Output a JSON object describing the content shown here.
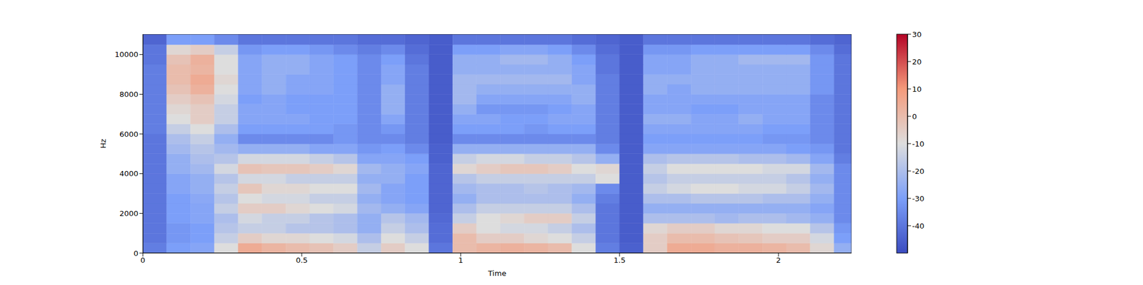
{
  "chart_data": {
    "type": "heatmap",
    "xlabel": "Time",
    "ylabel": "Hz",
    "xlim": [
      0,
      2.23
    ],
    "xticks": [
      0,
      0.5,
      1,
      1.5,
      2
    ],
    "ylim": [
      0,
      11025
    ],
    "yticks": [
      0,
      2000,
      4000,
      6000,
      8000,
      10000
    ],
    "x": [
      0,
      0.075,
      0.15,
      0.225,
      0.3,
      0.375,
      0.45,
      0.525,
      0.6,
      0.675,
      0.75,
      0.825,
      0.9,
      0.975,
      1.05,
      1.125,
      1.2,
      1.275,
      1.35,
      1.425,
      1.5,
      1.575,
      1.65,
      1.725,
      1.8,
      1.875,
      1.95,
      2.025,
      2.1,
      2.175
    ],
    "y": [
      0,
      500,
      1000,
      1500,
      2000,
      2500,
      3000,
      3500,
      4000,
      4500,
      5000,
      5500,
      6000,
      6500,
      7000,
      7500,
      8000,
      8500,
      9000,
      9500,
      10000,
      10500
    ],
    "cells": [
      [
        -38,
        -30,
        -28,
        -10,
        5,
        2,
        0,
        -2,
        -5,
        -15,
        -5,
        -10,
        -40,
        0,
        2,
        3,
        2,
        0,
        -10,
        -38,
        -45,
        -5,
        5,
        5,
        3,
        3,
        2,
        0,
        -8,
        -25
      ],
      [
        -40,
        -32,
        -30,
        -15,
        -5,
        -8,
        -8,
        -10,
        -12,
        -20,
        -10,
        -15,
        -42,
        0,
        -5,
        -5,
        -8,
        -10,
        -15,
        -40,
        -46,
        -5,
        0,
        0,
        -2,
        -3,
        -5,
        -5,
        -12,
        -30
      ],
      [
        -40,
        -32,
        -30,
        -18,
        -15,
        -15,
        -18,
        -18,
        -20,
        -25,
        -15,
        -20,
        -42,
        -5,
        -10,
        -12,
        -12,
        -15,
        -20,
        -40,
        -46,
        -8,
        -5,
        -5,
        -8,
        -8,
        -10,
        -10,
        -18,
        -32
      ],
      [
        -40,
        -30,
        -28,
        -20,
        -12,
        -15,
        -15,
        -18,
        -20,
        -25,
        -18,
        -22,
        -43,
        -15,
        -10,
        -8,
        -5,
        -5,
        -15,
        -40,
        -46,
        -20,
        -20,
        -20,
        -22,
        -20,
        -20,
        -22,
        -25,
        -35
      ],
      [
        -40,
        -30,
        -28,
        -15,
        -5,
        -5,
        -8,
        -10,
        -12,
        -22,
        -25,
        -28,
        -44,
        -20,
        -15,
        -15,
        -15,
        -15,
        -20,
        -40,
        -46,
        -25,
        -25,
        -25,
        -25,
        -25,
        -25,
        -25,
        -28,
        -35
      ],
      [
        -40,
        -30,
        -27,
        -18,
        -10,
        -12,
        -12,
        -15,
        -15,
        -25,
        -28,
        -30,
        -44,
        -25,
        -20,
        -20,
        -20,
        -20,
        -25,
        -38,
        -46,
        -20,
        -20,
        -18,
        -18,
        -18,
        -20,
        -20,
        -25,
        -35
      ],
      [
        -40,
        -28,
        -25,
        -15,
        -3,
        -8,
        -8,
        -10,
        -10,
        -22,
        -28,
        -30,
        -44,
        -22,
        -20,
        -20,
        -18,
        -20,
        -22,
        -35,
        -46,
        -15,
        -12,
        -10,
        -10,
        -12,
        -12,
        -15,
        -22,
        -35
      ],
      [
        -40,
        -28,
        -25,
        -18,
        -12,
        -12,
        -15,
        -15,
        -15,
        -25,
        -25,
        -30,
        -44,
        -18,
        -15,
        -15,
        -15,
        -15,
        -15,
        -10,
        -46,
        -18,
        -15,
        -15,
        -15,
        -15,
        -15,
        -18,
        -25,
        -35
      ],
      [
        -40,
        -25,
        -22,
        -12,
        -2,
        -3,
        -3,
        -5,
        -8,
        -22,
        -25,
        -28,
        -44,
        -8,
        -5,
        -3,
        -3,
        -5,
        -10,
        -8,
        -46,
        -15,
        -10,
        -10,
        -10,
        -10,
        -12,
        -12,
        -22,
        -35
      ],
      [
        -40,
        -25,
        -20,
        -18,
        -12,
        -12,
        -12,
        -15,
        -18,
        -28,
        -28,
        -30,
        -45,
        -15,
        -12,
        -12,
        -15,
        -15,
        -18,
        -25,
        -46,
        -20,
        -18,
        -18,
        -18,
        -20,
        -20,
        -22,
        -28,
        -38
      ],
      [
        -40,
        -22,
        -18,
        -22,
        -25,
        -25,
        -25,
        -28,
        -28,
        -32,
        -30,
        -35,
        -45,
        -25,
        -25,
        -25,
        -25,
        -25,
        -25,
        -35,
        -46,
        -28,
        -28,
        -28,
        -28,
        -28,
        -28,
        -30,
        -32,
        -40
      ],
      [
        -40,
        -20,
        -15,
        -25,
        -35,
        -35,
        -35,
        -35,
        -32,
        -35,
        -35,
        -38,
        -46,
        -35,
        -35,
        -35,
        -35,
        -35,
        -35,
        -38,
        -46,
        -30,
        -30,
        -30,
        -30,
        -30,
        -32,
        -32,
        -35,
        -40
      ],
      [
        -38,
        -15,
        -10,
        -20,
        -30,
        -30,
        -30,
        -30,
        -32,
        -35,
        -32,
        -38,
        -46,
        -30,
        -30,
        -30,
        -32,
        -30,
        -30,
        -38,
        -46,
        -28,
        -28,
        -28,
        -28,
        -28,
        -30,
        -30,
        -35,
        -40
      ],
      [
        -38,
        -10,
        -5,
        -15,
        -28,
        -28,
        -28,
        -30,
        -30,
        -35,
        -28,
        -38,
        -46,
        -28,
        -28,
        -30,
        -30,
        -28,
        -28,
        -38,
        -46,
        -25,
        -25,
        -28,
        -28,
        -25,
        -28,
        -28,
        -35,
        -40
      ],
      [
        -38,
        -8,
        -5,
        -15,
        -28,
        -28,
        -30,
        -30,
        -30,
        -35,
        -25,
        -38,
        -46,
        -25,
        -32,
        -32,
        -32,
        -30,
        -28,
        -38,
        -46,
        -28,
        -28,
        -30,
        -30,
        -28,
        -28,
        -28,
        -35,
        -40
      ],
      [
        -38,
        -5,
        -2,
        -12,
        -30,
        -28,
        -30,
        -30,
        -30,
        -35,
        -25,
        -38,
        -46,
        -22,
        -28,
        -28,
        -28,
        -28,
        -25,
        -38,
        -46,
        -28,
        -28,
        -28,
        -28,
        -28,
        -28,
        -28,
        -35,
        -40
      ],
      [
        -38,
        -2,
        3,
        -10,
        -28,
        -25,
        -28,
        -28,
        -30,
        -35,
        -25,
        -38,
        -46,
        -22,
        -25,
        -25,
        -25,
        -25,
        -25,
        -38,
        -46,
        -25,
        -28,
        -25,
        -25,
        -25,
        -25,
        -25,
        -32,
        -40
      ],
      [
        -38,
        0,
        5,
        -8,
        -28,
        -25,
        -28,
        -28,
        -30,
        -35,
        -28,
        -38,
        -46,
        -22,
        -22,
        -22,
        -22,
        -22,
        -28,
        -38,
        -46,
        -25,
        -25,
        -25,
        -25,
        -25,
        -25,
        -25,
        -32,
        -40
      ],
      [
        -38,
        0,
        2,
        -10,
        -28,
        -25,
        -25,
        -28,
        -30,
        -35,
        -28,
        -38,
        -46,
        -25,
        -25,
        -25,
        -25,
        -25,
        -28,
        -40,
        -46,
        -28,
        -28,
        -25,
        -25,
        -25,
        -25,
        -25,
        -32,
        -40
      ],
      [
        -40,
        -2,
        3,
        -10,
        -28,
        -25,
        -25,
        -28,
        -30,
        -35,
        -30,
        -40,
        -46,
        -25,
        -25,
        -22,
        -22,
        -25,
        -30,
        -40,
        -46,
        -28,
        -28,
        -25,
        -25,
        -22,
        -22,
        -22,
        -32,
        -40
      ],
      [
        -40,
        -8,
        -5,
        -15,
        -32,
        -30,
        -30,
        -32,
        -35,
        -38,
        -35,
        -42,
        -46,
        -30,
        -30,
        -28,
        -28,
        -30,
        -35,
        -42,
        -46,
        -32,
        -32,
        -30,
        -30,
        -30,
        -30,
        -30,
        -35,
        -42
      ],
      [
        -44,
        -30,
        -30,
        -35,
        -40,
        -40,
        -40,
        -40,
        -40,
        -42,
        -42,
        -44,
        -46,
        -40,
        -40,
        -40,
        -40,
        -40,
        -42,
        -44,
        -46,
        -40,
        -40,
        -40,
        -40,
        -40,
        -40,
        -40,
        -42,
        -44
      ]
    ],
    "colorbar": {
      "range": [
        -50,
        30
      ],
      "ticks": [
        -40,
        -30,
        -20,
        -10,
        0,
        10,
        20,
        30
      ]
    }
  }
}
